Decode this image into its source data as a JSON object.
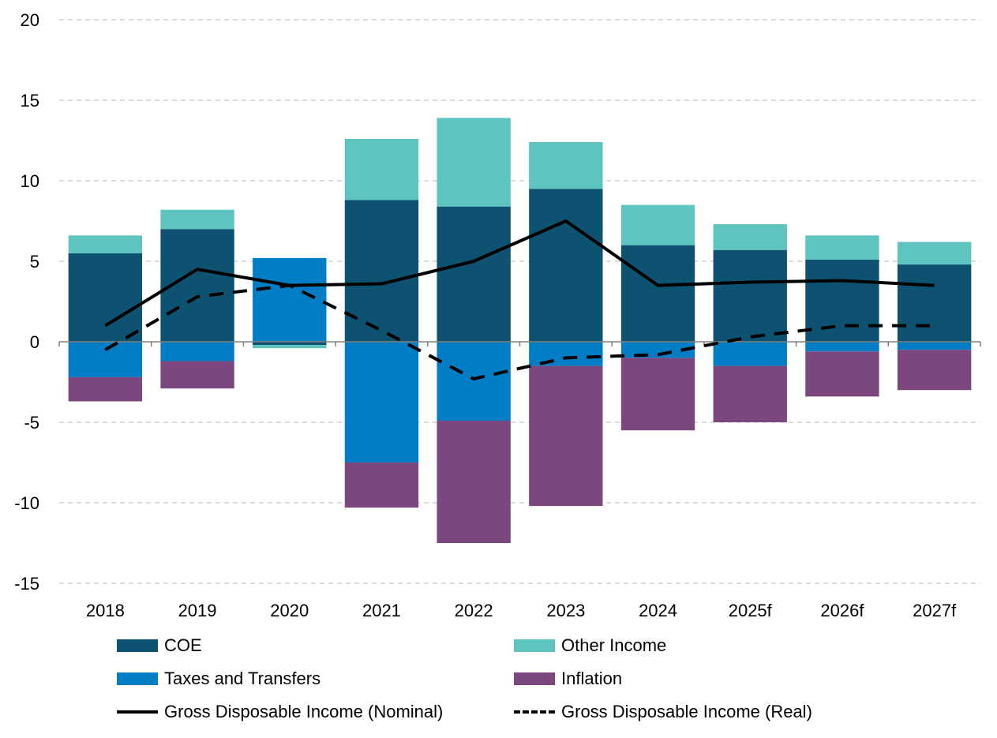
{
  "chart_data": {
    "type": "bar",
    "stacked": true,
    "categories": [
      "2018",
      "2019",
      "2020",
      "2021",
      "2022",
      "2023",
      "2024",
      "2025f",
      "2026f",
      "2027f"
    ],
    "ylim": [
      -15,
      20
    ],
    "yticks": [
      -15,
      -10,
      -5,
      0,
      5,
      10,
      15,
      20
    ],
    "grid": true,
    "series": [
      {
        "name": "COE",
        "kind": "bar",
        "color": "#0d5270",
        "values": [
          5.5,
          7.0,
          -0.2,
          8.8,
          8.4,
          9.5,
          6.0,
          5.7,
          5.1,
          4.8
        ]
      },
      {
        "name": "Other Income",
        "kind": "bar",
        "color": "#5ec4c0",
        "values": [
          1.1,
          1.2,
          -0.2,
          3.8,
          5.5,
          2.9,
          2.5,
          1.6,
          1.5,
          1.4
        ]
      },
      {
        "name": "Taxes and Transfers",
        "kind": "bar",
        "color": "#007dc5",
        "values": [
          -2.2,
          -1.2,
          5.2,
          -7.5,
          -4.9,
          -1.5,
          -1.0,
          -1.5,
          -0.6,
          -0.5
        ]
      },
      {
        "name": "Inflation",
        "kind": "bar",
        "color": "#7b477e",
        "values": [
          -1.5,
          -1.7,
          0,
          -2.8,
          -7.6,
          -8.7,
          -4.5,
          -3.5,
          -2.8,
          -2.5
        ]
      },
      {
        "name": "Gross Disposable Income (Nominal)",
        "kind": "line",
        "color": "#000000",
        "values": [
          1.0,
          4.5,
          3.5,
          3.6,
          5.0,
          7.5,
          3.5,
          3.7,
          3.8,
          3.5
        ]
      },
      {
        "name": "Gross Disposable Income (Real)",
        "kind": "line-dashed",
        "color": "#000000",
        "values": [
          -0.5,
          2.8,
          3.5,
          0.7,
          -2.3,
          -1.0,
          -0.8,
          0.3,
          1.0,
          1.0
        ]
      }
    ]
  },
  "legend": {
    "coe": "COE",
    "other_income": "Other Income",
    "taxes": "Taxes and Transfers",
    "inflation": "Inflation",
    "nominal": "Gross Disposable Income (Nominal)",
    "real": "Gross Disposable Income (Real)"
  }
}
